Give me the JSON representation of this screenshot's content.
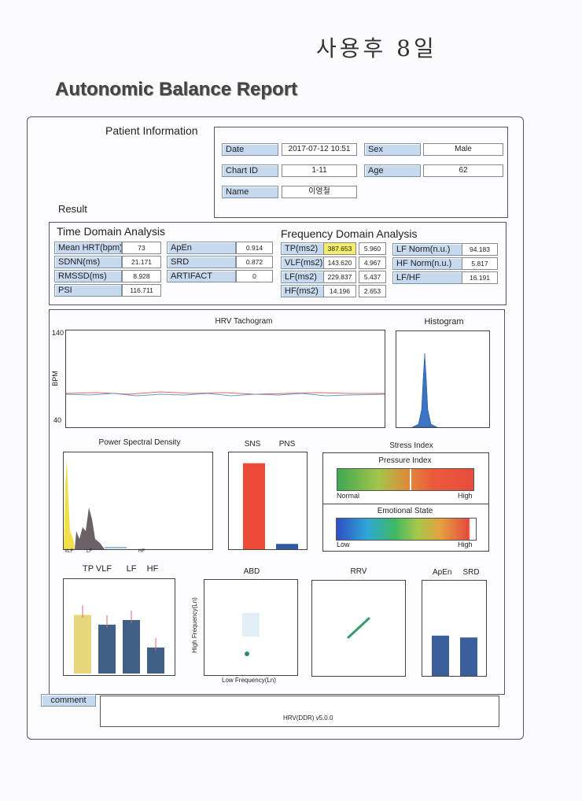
{
  "handwritten_note": "사용후 8일",
  "report_title": "Autonomic Balance Report",
  "patient": {
    "heading": "Patient Information",
    "date_label": "Date",
    "date": "2017-07-12 10:51",
    "sex_label": "Sex",
    "sex": "Male",
    "chart_id_label": "Chart ID",
    "chart_id": "1-11",
    "age_label": "Age",
    "age": "62",
    "name_label": "Name",
    "name": "이영철"
  },
  "result": {
    "heading": "Result",
    "time_domain": {
      "title": "Time Domain Analysis",
      "rows": [
        {
          "label": "Mean HRT(bpm)",
          "value": "73"
        },
        {
          "label": "SDNN(ms)",
          "value": "21.171"
        },
        {
          "label": "RMSSD(ms)",
          "value": "8.928"
        },
        {
          "label": "PSI",
          "value": "116.711"
        }
      ],
      "rows2": [
        {
          "label": "ApEn",
          "value": "0.914"
        },
        {
          "label": "SRD",
          "value": "0.872"
        },
        {
          "label": "ARTIFACT",
          "value": "0"
        }
      ]
    },
    "frequency_domain": {
      "title": "Frequency Domain Analysis",
      "rows": [
        {
          "label": "TP(ms2)",
          "value": "387.653",
          "value2": "5.960"
        },
        {
          "label": "VLF(ms2)",
          "value": "143.620",
          "value2": "4.967"
        },
        {
          "label": "LF(ms2)",
          "value": "229.837",
          "value2": "5.437"
        },
        {
          "label": "HF(ms2)",
          "value": "14.196",
          "value2": "2.653"
        }
      ],
      "rows2": [
        {
          "label": "LF Norm(n.u.)",
          "value": "94.183"
        },
        {
          "label": "HF Norm(n.u.)",
          "value": "5.817"
        },
        {
          "label": "LF/HF",
          "value": "16.191"
        }
      ],
      "highlight_color": "#f2ee6a"
    }
  },
  "charts": {
    "tachogram": {
      "title": "HRV Tachogram",
      "ylabel": "BPM",
      "ymax": "140",
      "ymin": "40"
    },
    "histogram": {
      "title": "Histogram"
    },
    "psd": {
      "title": "Power Spectral Density",
      "xlabels": [
        "VLF",
        "LF",
        "HF"
      ]
    },
    "sns_pns": {
      "sns_label": "SNS",
      "pns_label": "PNS",
      "sns_color": "#ee4a3a",
      "pns_color": "#2f5aa0"
    },
    "stress": {
      "title": "Stress Index",
      "pressure_title": "Pressure Index",
      "pressure_low": "Normal",
      "pressure_high": "High",
      "emotional_title": "Emotional State",
      "emotional_low": "Low",
      "emotional_high": "High"
    },
    "bars": {
      "labels": [
        "TP",
        "VLF",
        "LF",
        "HF"
      ]
    },
    "abd": {
      "title": "ABD",
      "xlabel": "Low Frequency(Ln)",
      "ylabel": "High Frequency(Ln)"
    },
    "rrv": {
      "title": "RRV"
    },
    "apen_srd": {
      "labels": [
        "ApEn",
        "SRD"
      ]
    }
  },
  "chart_data": [
    {
      "type": "bar",
      "title": "TP VLF LF HF",
      "categories": [
        "TP",
        "VLF",
        "LF",
        "HF"
      ],
      "values": [
        5.96,
        4.97,
        5.44,
        2.65
      ]
    },
    {
      "type": "bar",
      "title": "SNS PNS",
      "categories": [
        "SNS",
        "PNS"
      ],
      "values": [
        94.18,
        5.82
      ]
    },
    {
      "type": "bar",
      "title": "ApEn SRD",
      "categories": [
        "ApEn",
        "SRD"
      ],
      "values": [
        0.914,
        0.872
      ]
    }
  ],
  "comment": {
    "label": "comment",
    "footer": "HRV(DDR) v5.0.0"
  }
}
